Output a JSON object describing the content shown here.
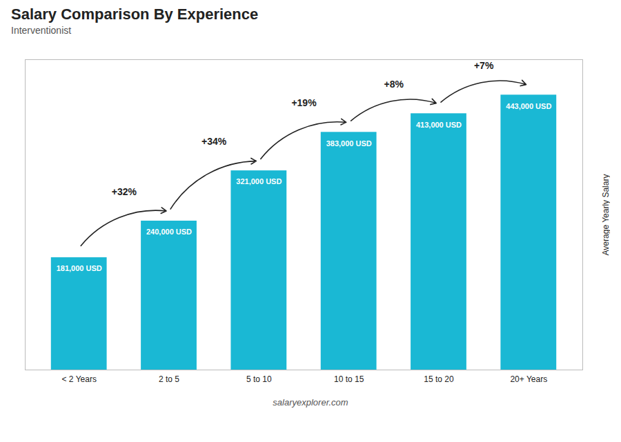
{
  "chart_data": {
    "type": "bar",
    "title": "Salary Comparison By Experience",
    "subtitle": "Interventionist",
    "categories": [
      "< 2 Years",
      "2 to 5",
      "5 to 10",
      "10 to 15",
      "15 to 20",
      "20+ Years"
    ],
    "values": [
      181000,
      240000,
      321000,
      383000,
      413000,
      443000
    ],
    "value_labels": [
      "181,000 USD",
      "240,000 USD",
      "321,000 USD",
      "383,000 USD",
      "413,000 USD",
      "443,000 USD"
    ],
    "data_labels": true,
    "color": "#1ab8d4",
    "ylabel": "Average Yearly Salary",
    "ylim": [
      0,
      500000
    ],
    "tick_labels": "x",
    "annotations": [
      {
        "from": "< 2 Years",
        "to": "2 to 5",
        "text": "+32%"
      },
      {
        "from": "2 to 5",
        "to": "5 to 10",
        "text": "+34%"
      },
      {
        "from": "5 to 10",
        "to": "10 to 15",
        "text": "+19%"
      },
      {
        "from": "10 to 15",
        "to": "15 to 20",
        "text": "+8%"
      },
      {
        "from": "15 to 20",
        "to": "20+ Years",
        "text": "+7%"
      }
    ],
    "caption": "salaryexplorer.com"
  }
}
